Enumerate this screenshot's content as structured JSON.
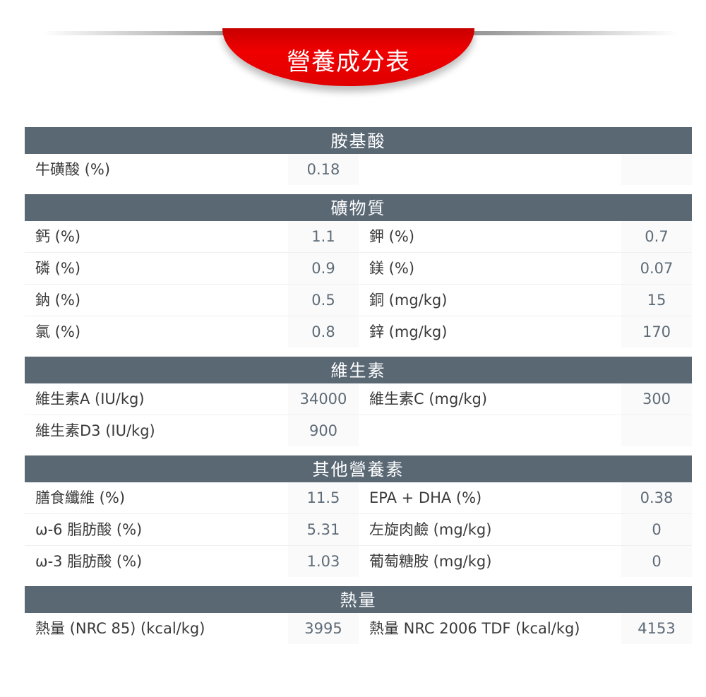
{
  "title": "營養成分表",
  "colors": {
    "header": "#5a6874",
    "banner": "#e60000"
  },
  "sections": [
    {
      "title": "胺基酸",
      "rows": [
        [
          "牛磺酸 (%)",
          "0.18",
          "",
          ""
        ]
      ]
    },
    {
      "title": "礦物質",
      "rows": [
        [
          "鈣 (%)",
          "1.1",
          "鉀 (%)",
          "0.7"
        ],
        [
          "磷 (%)",
          "0.9",
          "鎂 (%)",
          "0.07"
        ],
        [
          "鈉 (%)",
          "0.5",
          "銅 (mg/kg)",
          "15"
        ],
        [
          "氯 (%)",
          "0.8",
          "鋅 (mg/kg)",
          "170"
        ]
      ]
    },
    {
      "title": "維生素",
      "rows": [
        [
          "維生素A (IU/kg)",
          "34000",
          "維生素C (mg/kg)",
          "300"
        ],
        [
          "維生素D3 (IU/kg)",
          "900",
          "",
          ""
        ]
      ]
    },
    {
      "title": "其他營養素",
      "rows": [
        [
          "膳食纖維 (%)",
          "11.5",
          "EPA + DHA (%)",
          "0.38"
        ],
        [
          "ω-6 脂肪酸 (%)",
          "5.31",
          "左旋肉鹼 (mg/kg)",
          "0"
        ],
        [
          "ω-3 脂肪酸 (%)",
          "1.03",
          "葡萄糖胺 (mg/kg)",
          "0"
        ]
      ]
    },
    {
      "title": "熱量",
      "rows": [
        [
          "熱量 (NRC 85) (kcal/kg)",
          "3995",
          "熱量 NRC 2006 TDF (kcal/kg)",
          "4153"
        ]
      ]
    }
  ]
}
